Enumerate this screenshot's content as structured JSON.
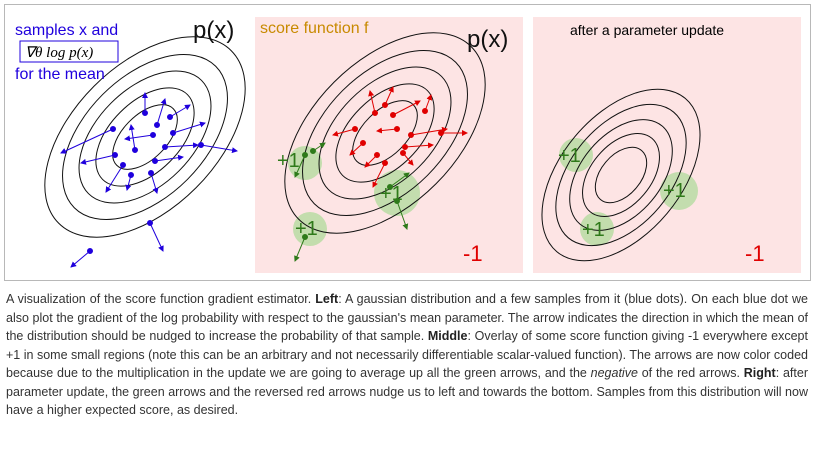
{
  "figure": {
    "left_panel": {
      "label_lines": [
        "samples x and",
        "for the mean"
      ],
      "label_formula": "∇θ log p(x)",
      "px_label": "p(x)"
    },
    "middle_panel": {
      "title": "score function f",
      "px_label": "p(x)",
      "plus_label": "+1",
      "minus_label": "-1"
    },
    "right_panel": {
      "title": "after a parameter update",
      "plus_label": "+1",
      "minus_label": "-1"
    },
    "colors": {
      "blue": "#1f00dd",
      "red": "#e00000",
      "green": "#2f7a1a",
      "pink_bg": "#fde4e4",
      "green_blob": "#b9dca4",
      "gold": "#c88a00"
    }
  },
  "caption": {
    "p1": "A visualization of the score function gradient estimator. ",
    "left_b": "Left",
    "p2": ": A gaussian distribution and a few samples from it (blue dots). On each blue dot we also plot the gradient of the log probability with respect to the gaussian's mean parameter. The arrow indicates the direction in which the mean of the distribution should be nudged to increase the probability of that sample. ",
    "middle_b": "Middle",
    "p3": ": Overlay of some score function giving -1 everywhere except +1 in some small regions (note this can be an arbitrary and not necessarily differentiable scalar-valued function). The arrows are now color coded because due to the multiplication in the update we are going to average up all the green arrows, and the ",
    "negative_i": "negative",
    "p4": " of the red arrows. ",
    "right_b": "Right",
    "p5": ": after parameter update, the green arrows and the reversed red arrows nudge us to left and towards the bottom. Samples from this distribution will now have a higher expected score, as desired."
  }
}
